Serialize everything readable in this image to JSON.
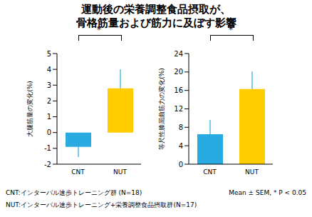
{
  "title": [
    "運動後の栄養調整食品摂取が、",
    "骨格筋量および筋力に及ぼす影響"
  ],
  "chart_data": [
    {
      "type": "bar",
      "y_label": "大腿筋量の変化(%)",
      "categories": [
        "CNT",
        "NUT"
      ],
      "values": [
        -0.9,
        2.8
      ],
      "errors": [
        0.65,
        1.2
      ],
      "colors": [
        "#29abe2",
        "#ffcc00"
      ],
      "ylim": [
        -2,
        5
      ],
      "yticks": [
        -2,
        -1,
        0,
        1,
        2,
        3,
        4,
        5
      ],
      "annotation": "*"
    },
    {
      "type": "bar",
      "y_label": "等尺性膝屈曲筋力の変化(%)",
      "categories": [
        "CNT",
        "NUT"
      ],
      "values": [
        6.5,
        16.3
      ],
      "errors": [
        3.1,
        3.8
      ],
      "colors": [
        "#29abe2",
        "#ffcc00"
      ],
      "ylim": [
        0,
        24
      ],
      "yticks": [
        0,
        4,
        8,
        12,
        16,
        20,
        24
      ],
      "annotation": "*"
    }
  ],
  "notes": {
    "left": [
      "CNT:インターバル速歩トレーニング群 (N=18)",
      "NUT:インターバル速歩トレーニング+栄養調整食品摂取群(N=17)"
    ],
    "right": "Mean ± SEM, * P < 0.05"
  }
}
